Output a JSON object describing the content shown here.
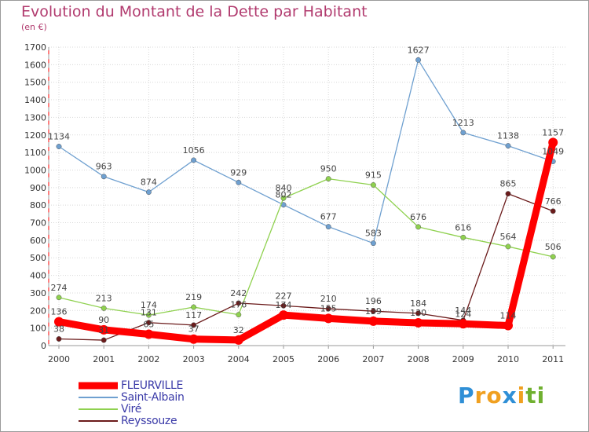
{
  "chart_data": {
    "type": "line",
    "title": "Evolution du Montant de la Dette par Habitant",
    "subtitle": "(en €)",
    "categories": [
      "2000",
      "2001",
      "2002",
      "2003",
      "2004",
      "2005",
      "2006",
      "2007",
      "2008",
      "2009",
      "2010",
      "2011"
    ],
    "ylim": [
      0,
      1700
    ],
    "yticks": [
      0,
      100,
      200,
      300,
      400,
      500,
      600,
      700,
      800,
      900,
      1000,
      1100,
      1200,
      1300,
      1400,
      1500,
      1600,
      1700
    ],
    "series": [
      {
        "name": "Saint-Albain",
        "color": "#6fa0d0",
        "values": [
          1134,
          963,
          874,
          1056,
          929,
          802,
          677,
          583,
          1627,
          1213,
          1138,
          1049
        ]
      },
      {
        "name": "Viré",
        "color": "#8fd14f",
        "values": [
          274,
          213,
          174,
          219,
          176,
          840,
          950,
          915,
          676,
          616,
          564,
          506
        ]
      },
      {
        "name": "Reyssouze",
        "color": "#6b1b1b",
        "values": [
          38,
          31,
          131,
          117,
          242,
          227,
          210,
          196,
          184,
          144,
          865,
          766
        ]
      },
      {
        "name": "FLEURVILLE",
        "color": "#ff0000",
        "values": [
          136,
          90,
          65,
          37,
          32,
          174,
          155,
          139,
          130,
          124,
          114,
          1157
        ]
      }
    ],
    "labels": {
      "Saint-Albain": [
        "1134",
        "963",
        "874",
        "1056",
        "929",
        "802",
        "677",
        "583",
        "1627",
        "1213",
        "1138",
        "1049"
      ],
      "Viré": [
        "274",
        "213",
        "174",
        "219",
        "176",
        "840",
        "950",
        "915",
        "676",
        "616",
        "564",
        "506"
      ],
      "Reyssouze": [
        "38",
        "31",
        "131",
        "117",
        "242",
        "227",
        "210",
        "196",
        "184",
        "144",
        "865",
        "766"
      ],
      "FLEURVILLE": [
        "136",
        "90",
        "65",
        "37",
        "32",
        "174",
        "155",
        "139",
        "130",
        "124",
        "114",
        "1157"
      ]
    },
    "legend": [
      "FLEURVILLE",
      "Saint-Albain",
      "Viré",
      "Reyssouze"
    ],
    "grid": true
  },
  "brand": {
    "letters": [
      "P",
      "r",
      "o",
      "x",
      "i",
      "t",
      "i"
    ],
    "colors": [
      "#2f8fd6",
      "#f0a020",
      "#f0a020",
      "#2f8fd6",
      "#f0a020",
      "#70b030",
      "#70b030"
    ]
  }
}
